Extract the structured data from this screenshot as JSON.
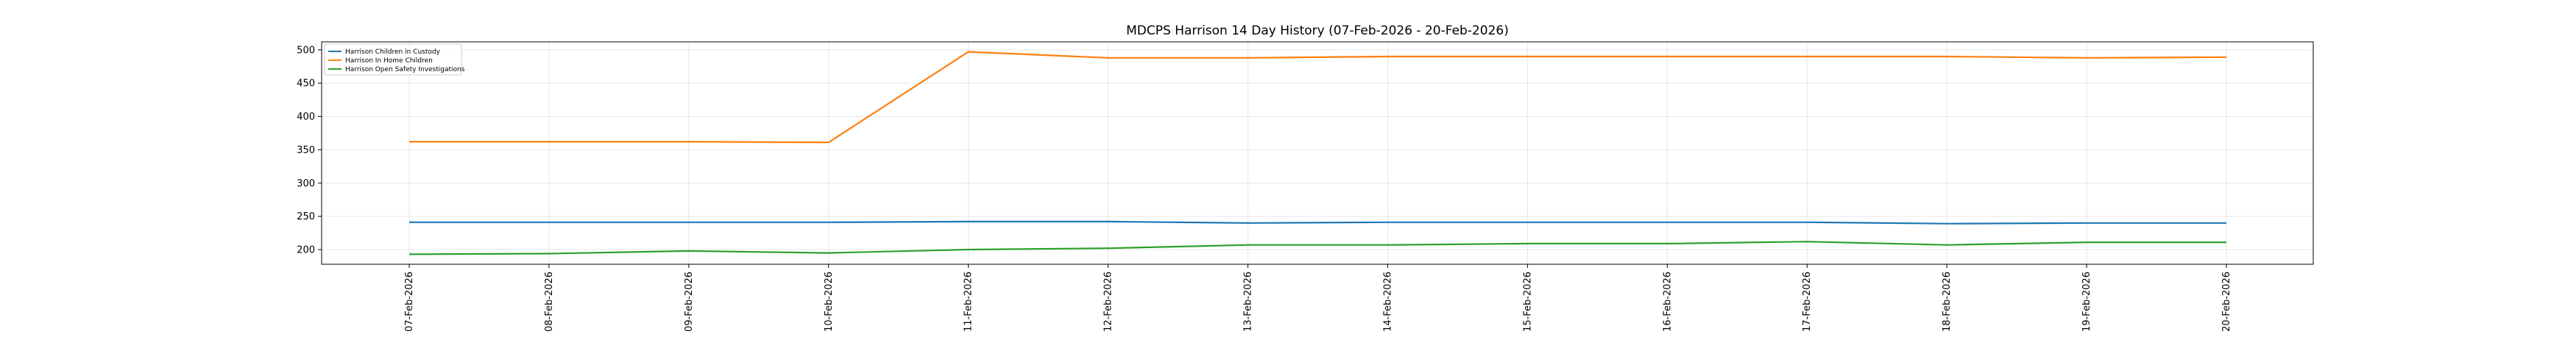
{
  "chart_data": {
    "type": "line",
    "title": "MDCPS Harrison 14 Day History (07-Feb-2026 - 20-Feb-2026)",
    "xlabel": "",
    "ylabel": "",
    "categories": [
      "07-Feb-2026",
      "08-Feb-2026",
      "09-Feb-2026",
      "10-Feb-2026",
      "11-Feb-2026",
      "12-Feb-2026",
      "13-Feb-2026",
      "14-Feb-2026",
      "15-Feb-2026",
      "16-Feb-2026",
      "17-Feb-2026",
      "18-Feb-2026",
      "19-Feb-2026",
      "20-Feb-2026"
    ],
    "yticks": [
      200,
      250,
      300,
      350,
      400,
      450,
      500
    ],
    "ylim": [
      178,
      512
    ],
    "grid": true,
    "legend_position": "top-left",
    "series": [
      {
        "name": "Harrison Children in Custody",
        "color": "#1f77b4",
        "values": [
          241,
          241,
          241,
          241,
          242,
          242,
          240,
          241,
          241,
          241,
          241,
          239,
          240,
          240
        ]
      },
      {
        "name": "Harrison In Home Children",
        "color": "#ff7f0e",
        "values": [
          362,
          362,
          362,
          361,
          497,
          488,
          488,
          490,
          490,
          490,
          490,
          490,
          488,
          489
        ]
      },
      {
        "name": "Harrison Open Safety Investigations",
        "color": "#2ca02c",
        "values": [
          193,
          194,
          198,
          195,
          200,
          202,
          207,
          207,
          209,
          209,
          212,
          207,
          211,
          211
        ]
      }
    ]
  }
}
